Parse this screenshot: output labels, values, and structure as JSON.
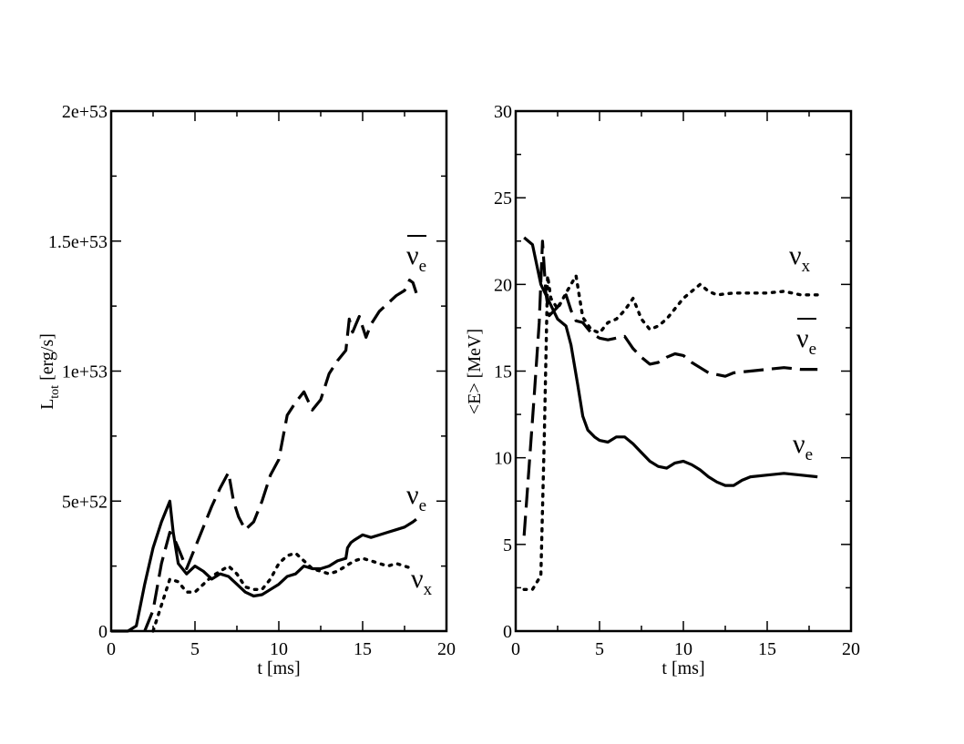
{
  "chart_data": [
    {
      "type": "line",
      "xlabel": "t [ms]",
      "ylabel_main": "L",
      "ylabel_sub": "tot",
      "ylabel_rest": " [erg/s]",
      "xlim": [
        0,
        20
      ],
      "ylim": [
        0,
        2e+53
      ],
      "xticks": [
        0,
        5,
        10,
        15,
        20
      ],
      "xtick_labels": [
        "0",
        "5",
        "10",
        "15",
        "20"
      ],
      "yticks": [
        0,
        5e+52,
        1e+53,
        1.5e+53,
        2e+53
      ],
      "ytick_labels": [
        "0",
        "5e+52",
        "1e+53",
        "1.5e+53",
        "2e+53"
      ],
      "series": [
        {
          "name": "nu_e",
          "label_main": "ν",
          "label_sub": "e",
          "bar": false,
          "dash": "solid",
          "x": [
            0,
            1,
            1.5,
            2,
            2.5,
            3,
            3.5,
            3.7,
            4,
            4.5,
            5,
            5.5,
            6,
            6.5,
            7,
            7.5,
            8,
            8.5,
            9,
            9.5,
            10,
            10.5,
            11,
            11.5,
            12,
            12.5,
            13,
            13.5,
            14,
            14.1,
            14.3,
            14.5,
            15,
            15.5,
            16,
            16.5,
            17,
            17.5,
            18,
            18.2
          ],
          "y": [
            0,
            0,
            2e+51,
            1.8e+52,
            3.2e+52,
            4.2e+52,
            5e+52,
            3.8e+52,
            2.6e+52,
            2.2e+52,
            2.5e+52,
            2.3e+52,
            2e+52,
            2.2e+52,
            2.1e+52,
            1.8e+52,
            1.5e+52,
            1.35e+52,
            1.4e+52,
            1.6e+52,
            1.8e+52,
            2.1e+52,
            2.2e+52,
            2.5e+52,
            2.4e+52,
            2.4e+52,
            2.5e+52,
            2.7e+52,
            2.8e+52,
            3.2e+52,
            3.4e+52,
            3.5e+52,
            3.7e+52,
            3.6e+52,
            3.7e+52,
            3.8e+52,
            3.9e+52,
            4e+52,
            4.2e+52,
            4.3e+52
          ]
        },
        {
          "name": "nu_e_bar",
          "label_main": "ν",
          "label_sub": "e",
          "bar": true,
          "dash": "long-dash",
          "x": [
            2,
            2.5,
            3,
            3.5,
            3.8,
            4,
            4.5,
            5,
            5.5,
            6,
            6.5,
            7,
            7.3,
            7.6,
            8,
            8.5,
            9,
            9.5,
            10,
            10.5,
            11,
            11.5,
            12,
            12.5,
            13,
            13.5,
            14,
            14.2,
            14.4,
            14.6,
            14.8,
            15,
            15.2,
            15.5,
            16,
            16.5,
            17,
            17.5,
            17.8,
            18,
            18.2
          ],
          "y": [
            0,
            8e+51,
            2.6e+52,
            3.8e+52,
            3.5e+52,
            3.2e+52,
            2.4e+52,
            3.2e+52,
            4e+52,
            4.8e+52,
            5.5e+52,
            6.1e+52,
            5e+52,
            4.4e+52,
            3.9e+52,
            4.2e+52,
            5e+52,
            6e+52,
            6.6e+52,
            8.3e+52,
            8.8e+52,
            9.2e+52,
            8.5e+52,
            8.9e+52,
            9.9e+52,
            1.04e+53,
            1.08e+53,
            1.2e+53,
            1.15e+53,
            1.18e+53,
            1.21e+53,
            1.17e+53,
            1.13e+53,
            1.18e+53,
            1.23e+53,
            1.26e+53,
            1.29e+53,
            1.31e+53,
            1.35e+53,
            1.34e+53,
            1.3e+53
          ]
        },
        {
          "name": "nu_x",
          "label_main": "ν",
          "label_sub": "x",
          "bar": false,
          "dash": "dotted",
          "x": [
            2.5,
            3,
            3.5,
            4,
            4.5,
            5,
            5.5,
            6,
            6.5,
            7,
            7.5,
            8,
            8.5,
            9,
            9.5,
            10,
            10.5,
            11,
            11.5,
            12,
            12.5,
            13,
            13.5,
            14,
            14.5,
            15,
            15.5,
            16,
            16.5,
            17,
            17.5,
            18
          ],
          "y": [
            0,
            1e+52,
            2e+52,
            1.9e+52,
            1.5e+52,
            1.5e+52,
            1.8e+52,
            2.1e+52,
            2.3e+52,
            2.5e+52,
            2.2e+52,
            1.7e+52,
            1.6e+52,
            1.6e+52,
            2e+52,
            2.6e+52,
            2.9e+52,
            3e+52,
            2.7e+52,
            2.4e+52,
            2.3e+52,
            2.2e+52,
            2.3e+52,
            2.5e+52,
            2.7e+52,
            2.8e+52,
            2.7e+52,
            2.6e+52,
            2.5e+52,
            2.6e+52,
            2.5e+52,
            2.4e+52
          ]
        }
      ]
    },
    {
      "type": "line",
      "xlabel": "t [ms]",
      "ylabel": "<E> [MeV]",
      "xlim": [
        0,
        20
      ],
      "ylim": [
        0,
        30
      ],
      "xticks": [
        0,
        5,
        10,
        15,
        20
      ],
      "xtick_labels": [
        "0",
        "5",
        "10",
        "15",
        "20"
      ],
      "yticks": [
        0,
        5,
        10,
        15,
        20,
        25,
        30
      ],
      "ytick_labels": [
        "0",
        "5",
        "10",
        "15",
        "20",
        "25",
        "30"
      ],
      "series": [
        {
          "name": "nu_e",
          "label_main": "ν",
          "label_sub": "e",
          "bar": false,
          "dash": "solid",
          "x": [
            0.5,
            1,
            1.5,
            2,
            2.5,
            3,
            3.3,
            3.7,
            4,
            4.3,
            4.7,
            5,
            5.5,
            6,
            6.5,
            7,
            7.5,
            8,
            8.5,
            9,
            9.5,
            10,
            10.5,
            11,
            11.5,
            12,
            12.5,
            13,
            13.5,
            14,
            15,
            16,
            17,
            18
          ],
          "y": [
            22.7,
            22.3,
            20.0,
            19.0,
            18.0,
            17.6,
            16.5,
            14.2,
            12.4,
            11.6,
            11.2,
            11.0,
            10.9,
            11.2,
            11.2,
            10.8,
            10.3,
            9.8,
            9.5,
            9.4,
            9.7,
            9.8,
            9.6,
            9.3,
            8.9,
            8.6,
            8.4,
            8.4,
            8.7,
            8.9,
            9.0,
            9.1,
            9.0,
            8.9
          ]
        },
        {
          "name": "nu_e_bar",
          "label_main": "ν",
          "label_sub": "e",
          "bar": true,
          "dash": "long-dash",
          "x": [
            0.5,
            0.8,
            1.1,
            1.4,
            1.6,
            1.8,
            2,
            2.5,
            3,
            3.3,
            3.6,
            4,
            4.5,
            5,
            5.5,
            6,
            6.5,
            7,
            7.5,
            8,
            8.5,
            9,
            9.5,
            10,
            10.5,
            11,
            11.5,
            12,
            12.5,
            13,
            14,
            15,
            16,
            17,
            18
          ],
          "y": [
            5.5,
            9.5,
            13.5,
            17.8,
            22.5,
            19.5,
            18.2,
            18.7,
            19.4,
            18.5,
            17.9,
            17.8,
            17.2,
            16.9,
            16.8,
            16.9,
            17.0,
            16.3,
            15.8,
            15.4,
            15.5,
            15.8,
            16.0,
            15.9,
            15.5,
            15.2,
            14.9,
            14.8,
            14.7,
            14.9,
            15.0,
            15.1,
            15.2,
            15.1,
            15.1
          ]
        },
        {
          "name": "nu_x",
          "label_main": "ν",
          "label_sub": "x",
          "bar": false,
          "dash": "dotted",
          "x": [
            0.5,
            1,
            1.5,
            1.7,
            1.9,
            2.1,
            2.5,
            3,
            3.3,
            3.6,
            4,
            4.5,
            5,
            5.5,
            6,
            6.5,
            7,
            7.5,
            8,
            8.5,
            9,
            9.5,
            10,
            10.5,
            11,
            11.5,
            12,
            13,
            14,
            15,
            16,
            17,
            18
          ],
          "y": [
            2.4,
            2.4,
            3.2,
            11.0,
            20.5,
            19.2,
            18.6,
            19.5,
            20.0,
            20.5,
            18.1,
            17.4,
            17.2,
            17.8,
            18.0,
            18.5,
            19.2,
            18.0,
            17.4,
            17.6,
            18.0,
            18.6,
            19.2,
            19.6,
            20.0,
            19.6,
            19.4,
            19.5,
            19.5,
            19.5,
            19.6,
            19.4,
            19.4
          ]
        }
      ]
    }
  ]
}
